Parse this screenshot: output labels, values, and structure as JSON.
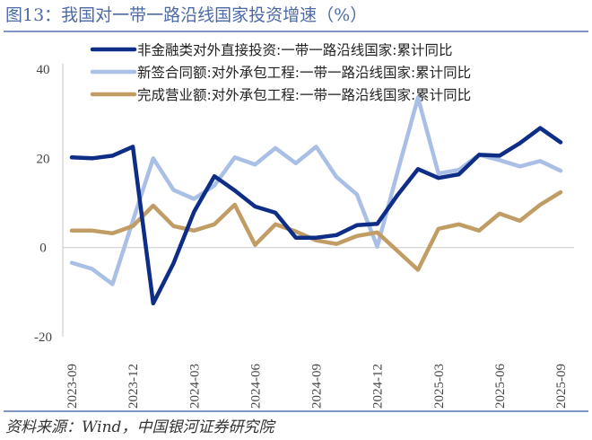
{
  "title": "图13：我国对一带一路沿线国家投资增速（%）",
  "source": "资料来源：Wind，中国银河证券研究院",
  "chart_data": {
    "type": "line",
    "title": "图13：我国对一带一路沿线国家投资增速（%）",
    "xlabel": "",
    "ylabel": "",
    "ylim": [
      -20,
      40
    ],
    "yticks": [
      "40",
      "20",
      "0",
      "-20"
    ],
    "ytick_values": [
      40,
      20,
      0,
      -20
    ],
    "x": [
      "2023-09",
      "2023-10",
      "2023-11",
      "2023-12",
      "2024-01",
      "2024-02",
      "2024-03",
      "2024-04",
      "2024-05",
      "2024-06",
      "2024-07",
      "2024-08",
      "2024-09",
      "2024-10",
      "2024-11",
      "2024-12",
      "2025-01",
      "2025-02",
      "2025-03",
      "2025-04",
      "2025-05",
      "2025-06",
      "2025-07",
      "2025-08",
      "2025-09"
    ],
    "xticks": [
      "2023-09",
      "2023-12",
      "2024-03",
      "2024-06",
      "2024-09",
      "2024-12",
      "2025-03",
      "2025-06",
      "2025-09"
    ],
    "grid": false,
    "legend_placement": "top",
    "series": [
      {
        "name": "非金融类对外直接投资:一带一路沿线国家:累计同比",
        "color": "#0d2d86",
        "values": [
          20.2,
          20.0,
          20.6,
          22.6,
          -12.5,
          -3.5,
          8.0,
          16.0,
          12.8,
          9.2,
          7.8,
          2.2,
          2.2,
          2.8,
          5.0,
          5.3,
          11.8,
          17.6,
          15.6,
          16.4,
          20.8,
          20.6,
          23.4,
          26.8,
          23.6
        ]
      },
      {
        "name": "新签合同额:对外承包工程:一带一路沿线国家:累计同比",
        "color": "#a9bfe5",
        "values": [
          -3.4,
          -4.8,
          -8.2,
          6.0,
          20.0,
          12.9,
          10.9,
          13.9,
          20.2,
          18.6,
          22.3,
          18.9,
          22.6,
          15.8,
          11.9,
          0.2,
          17.0,
          33.6,
          16.6,
          17.4,
          20.8,
          19.6,
          18.2,
          19.4,
          17.2
        ]
      },
      {
        "name": "完成营业额:对外承包工程:一带一路沿线国家:累计同比",
        "color": "#c19c64",
        "values": [
          3.8,
          3.8,
          3.2,
          4.8,
          9.4,
          4.8,
          3.8,
          5.2,
          9.6,
          0.6,
          5.2,
          3.6,
          1.6,
          0.8,
          2.6,
          3.4,
          -0.8,
          -5.0,
          4.2,
          5.2,
          3.8,
          7.6,
          6.0,
          9.6,
          12.4
        ]
      }
    ]
  }
}
